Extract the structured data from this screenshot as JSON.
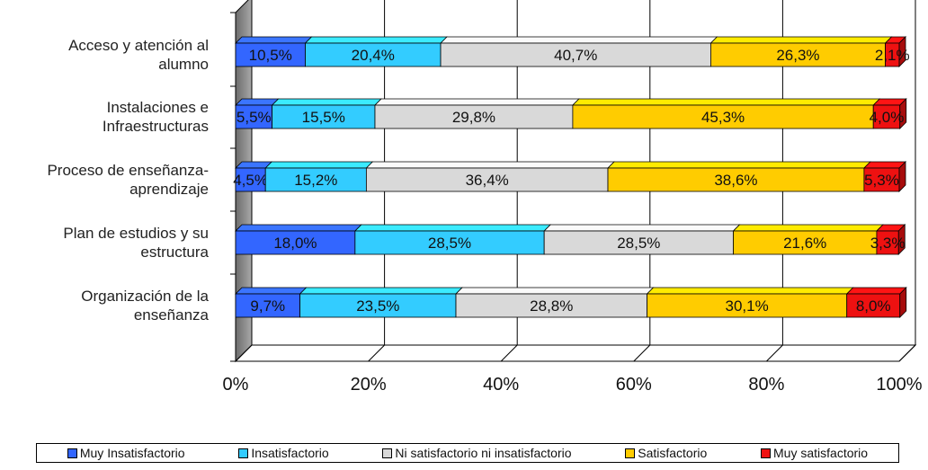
{
  "chart_data": {
    "type": "bar",
    "orientation": "horizontal",
    "stacked": "percent",
    "categories": [
      [
        "Acceso y atención al",
        "alumno"
      ],
      [
        "Instalaciones e",
        "Infraestructuras"
      ],
      [
        "Proceso de enseñanza-",
        "aprendizaje"
      ],
      [
        "Plan de estudios y su",
        "estructura"
      ],
      [
        "Organización de la",
        "enseñanza"
      ]
    ],
    "series": [
      {
        "name": "Muy Insatisfactorio",
        "color": "#3366ff",
        "values": [
          10.5,
          5.5,
          4.5,
          18.0,
          9.7
        ],
        "labels": [
          "10,5%",
          "5,5%",
          "4,5%",
          "18,0%",
          "9,7%"
        ]
      },
      {
        "name": "Insatisfactorio",
        "color": "#33ccff",
        "values": [
          20.4,
          15.5,
          15.2,
          28.5,
          23.5
        ],
        "labels": [
          "20,4%",
          "15,5%",
          "15,2%",
          "28,5%",
          "23,5%"
        ]
      },
      {
        "name": "Ni satisfactorio  ni insatisfactorio",
        "color": "#d9d9d9",
        "values": [
          40.7,
          29.8,
          36.4,
          28.5,
          28.8
        ],
        "labels": [
          "40,7%",
          "29,8%",
          "36,4%",
          "28,5%",
          "28,8%"
        ]
      },
      {
        "name": "Satisfactorio",
        "color": "#ffcc00",
        "values": [
          26.3,
          45.3,
          38.6,
          21.6,
          30.1
        ],
        "labels": [
          "26,3%",
          "45,3%",
          "38,6%",
          "21,6%",
          "30,1%"
        ]
      },
      {
        "name": "Muy satisfactorio",
        "color": "#ee1111",
        "values": [
          2.1,
          4.0,
          5.3,
          3.3,
          8.0
        ],
        "labels": [
          "2,1%",
          "4,0%",
          "5,3%",
          "3,3%",
          "8,0%"
        ]
      }
    ],
    "xticks": [
      "0%",
      "20%",
      "40%",
      "60%",
      "80%",
      "100%"
    ],
    "xlim": [
      0,
      100
    ],
    "grid": true,
    "legend_position": "bottom",
    "style": "3d"
  }
}
